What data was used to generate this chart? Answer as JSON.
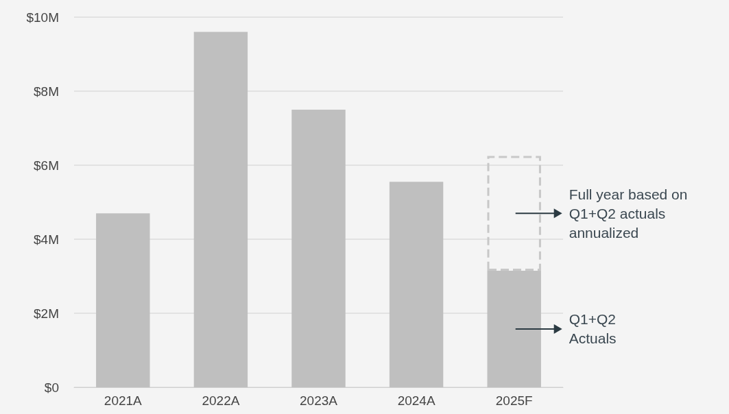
{
  "chart_data": {
    "type": "bar",
    "stacked": true,
    "categories": [
      "2021A",
      "2022A",
      "2023A",
      "2024A",
      "2025F"
    ],
    "series": [
      {
        "color": "#bfbfbf",
        "values": [
          4.7,
          9.6,
          7.5,
          5.55,
          3.15
        ]
      },
      {
        "color": "#c8c8c8",
        "line_style": "dashed",
        "values": [
          null,
          null,
          null,
          null,
          3.1
        ]
      }
    ],
    "ylim": [
      0,
      10
    ],
    "yticks": [
      {
        "value": 0,
        "label": "$0"
      },
      {
        "value": 2,
        "label": "$2M"
      },
      {
        "value": 4,
        "label": "$4M"
      },
      {
        "value": 6,
        "label": "$6M"
      },
      {
        "value": 8,
        "label": "$8M"
      },
      {
        "value": 10,
        "label": "$10M"
      }
    ],
    "grid": "y",
    "annotations": [
      "Full year based on\nQ1+Q2 actuals\nannualized",
      "Q1+Q2\nActuals"
    ]
  }
}
